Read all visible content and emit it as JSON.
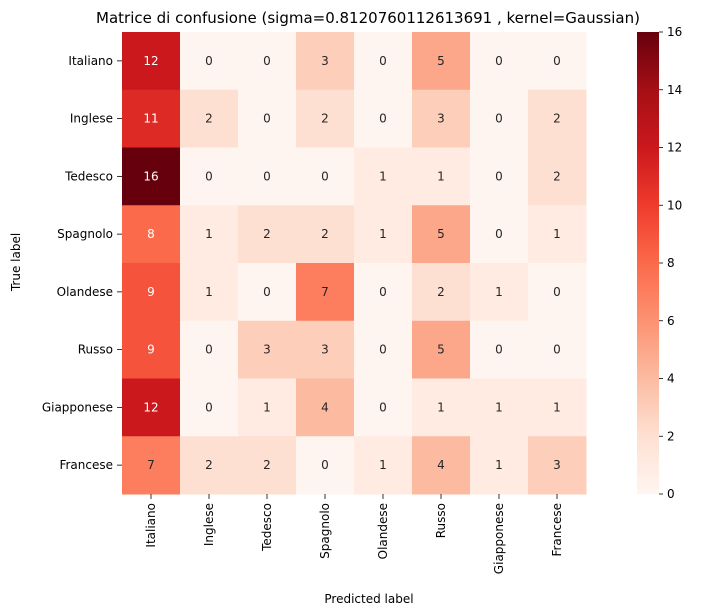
{
  "chart_data": {
    "type": "heatmap",
    "title": "Matrice di confusione (sigma=0.8120760112613691 , kernel=Gaussian)",
    "xlabel": "Predicted label",
    "ylabel": "True label",
    "x_categories": [
      "Italiano",
      "Inglese",
      "Tedesco",
      "Spagnolo",
      "Olandese",
      "Russo",
      "Giapponese",
      "Francese"
    ],
    "y_categories": [
      "Italiano",
      "Inglese",
      "Tedesco",
      "Spagnolo",
      "Olandese",
      "Russo",
      "Giapponese",
      "Francese"
    ],
    "values": [
      [
        12,
        0,
        0,
        3,
        0,
        5,
        0,
        0
      ],
      [
        11,
        2,
        0,
        2,
        0,
        3,
        0,
        2
      ],
      [
        16,
        0,
        0,
        0,
        1,
        1,
        0,
        2
      ],
      [
        8,
        1,
        2,
        2,
        1,
        5,
        0,
        1
      ],
      [
        9,
        1,
        0,
        7,
        0,
        2,
        1,
        0
      ],
      [
        9,
        0,
        3,
        3,
        0,
        5,
        0,
        0
      ],
      [
        12,
        0,
        1,
        4,
        0,
        1,
        1,
        1
      ],
      [
        7,
        2,
        2,
        0,
        1,
        4,
        1,
        3
      ]
    ],
    "colormap": "Reds",
    "vmin": 0,
    "vmax": 16,
    "colorbar_ticks": [
      0,
      2,
      4,
      6,
      8,
      10,
      12,
      14,
      16
    ],
    "colorbar_tick_labels": [
      "0",
      "2",
      "4",
      "6",
      "8",
      "10",
      "12",
      "14",
      "16"
    ],
    "annotated": true,
    "grid": false
  }
}
